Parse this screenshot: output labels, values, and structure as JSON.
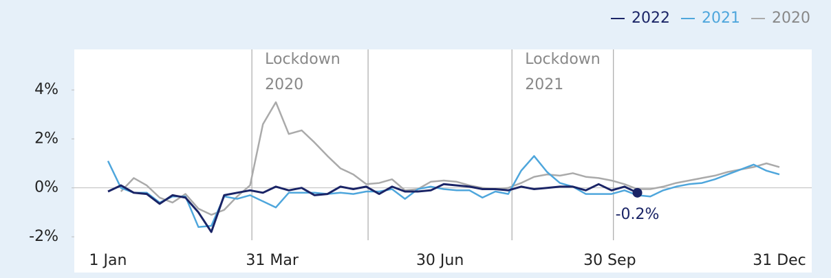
{
  "chart_data": {
    "type": "line",
    "x": [
      1,
      8,
      15,
      22,
      29,
      36,
      43,
      50,
      57,
      64,
      71,
      78,
      85,
      92,
      99,
      106,
      113,
      120,
      127,
      134,
      141,
      148,
      155,
      162,
      169,
      176,
      183,
      190,
      197,
      204,
      211,
      218,
      225,
      232,
      239,
      246,
      253,
      260,
      267,
      274,
      281,
      288,
      295,
      302,
      309,
      316,
      323,
      330,
      337,
      344,
      351,
      358,
      365
    ],
    "series": [
      {
        "name": "2022",
        "color": "#1a2466",
        "values": [
          -0.15,
          0.1,
          -0.2,
          -0.25,
          -0.65,
          -0.3,
          -0.4,
          -1.0,
          -1.8,
          -0.3,
          -0.2,
          -0.1,
          -0.2,
          0.05,
          -0.1,
          0,
          -0.3,
          -0.25,
          0.05,
          -0.05,
          0.05,
          -0.25,
          0.05,
          -0.15,
          -0.15,
          -0.1,
          0.15,
          0.1,
          0.05,
          -0.05,
          -0.05,
          -0.1,
          0.05,
          -0.05,
          0,
          0.05,
          0.05,
          -0.1,
          0.15,
          -0.1,
          0.05,
          -0.2,
          null,
          null,
          null,
          null,
          null,
          null,
          null,
          null,
          null,
          null,
          null
        ],
        "value_labels": [
          null,
          null,
          null,
          null,
          null,
          null,
          null,
          null,
          null,
          null,
          null,
          null,
          null,
          null,
          null,
          null,
          null,
          null,
          null,
          null,
          null,
          null,
          null,
          null,
          null,
          null,
          null,
          null,
          null,
          null,
          null,
          null,
          null,
          null,
          null,
          null,
          null,
          null,
          null,
          null,
          null,
          "-0.2%",
          null,
          null,
          null,
          null,
          null,
          null,
          null,
          null,
          null,
          null,
          null
        ]
      },
      {
        "name": "2021",
        "color": "#4ea6dc",
        "values": [
          1.1,
          0,
          -0.2,
          -0.2,
          -0.6,
          -0.35,
          -0.35,
          -1.6,
          -1.55,
          -0.35,
          -0.45,
          -0.3,
          -0.55,
          -0.8,
          -0.2,
          -0.2,
          -0.2,
          -0.25,
          -0.2,
          -0.25,
          -0.15,
          -0.15,
          -0.05,
          -0.45,
          -0.05,
          0.05,
          -0.05,
          -0.1,
          -0.1,
          -0.4,
          -0.15,
          -0.25,
          0.7,
          1.3,
          0.65,
          0.2,
          0.05,
          -0.25,
          -0.25,
          -0.25,
          -0.1,
          -0.3,
          -0.35,
          -0.1,
          0.05,
          0.15,
          0.2,
          0.35,
          0.55,
          0.75,
          0.95,
          0.7,
          0.55
        ]
      },
      {
        "name": "2020",
        "color": "#aaaaaa",
        "values": [
          null,
          -0.15,
          0.4,
          0.1,
          -0.4,
          -0.6,
          -0.25,
          -0.85,
          -1.1,
          -0.9,
          -0.35,
          0.1,
          2.6,
          3.5,
          2.2,
          2.35,
          1.85,
          1.3,
          0.8,
          0.55,
          0.15,
          0.2,
          0.35,
          -0.1,
          -0.05,
          0.25,
          0.3,
          0.25,
          0.1,
          0,
          -0.05,
          0,
          0.2,
          0.45,
          0.55,
          0.5,
          0.6,
          0.45,
          0.4,
          0.3,
          0.15,
          -0.05,
          -0.05,
          0.05,
          0.2,
          0.3,
          0.4,
          0.5,
          0.65,
          0.75,
          0.85,
          1.0,
          0.85
        ]
      }
    ],
    "xlim": [
      1,
      365
    ],
    "xticks": [
      {
        "value": 1,
        "label": "1 Jan"
      },
      {
        "value": 90,
        "label": "31 Mar"
      },
      {
        "value": 181,
        "label": "30 Jun"
      },
      {
        "value": 273,
        "label": "30 Sep"
      },
      {
        "value": 365,
        "label": "31 Dec"
      }
    ],
    "ylim": [
      -2,
      5.6
    ],
    "yticks": [
      {
        "value": -2,
        "label": "-2%"
      },
      {
        "value": 0,
        "label": "0%"
      },
      {
        "value": 2,
        "label": "2%"
      },
      {
        "value": 4,
        "label": "4%"
      }
    ],
    "annotations": [
      {
        "lines": [
          "Lockdown",
          "2020"
        ],
        "x": [
          79,
          142
        ]
      },
      {
        "lines": [
          "Lockdown",
          "2021"
        ],
        "x": [
          220,
          275
        ]
      }
    ],
    "legend": "top-right"
  }
}
